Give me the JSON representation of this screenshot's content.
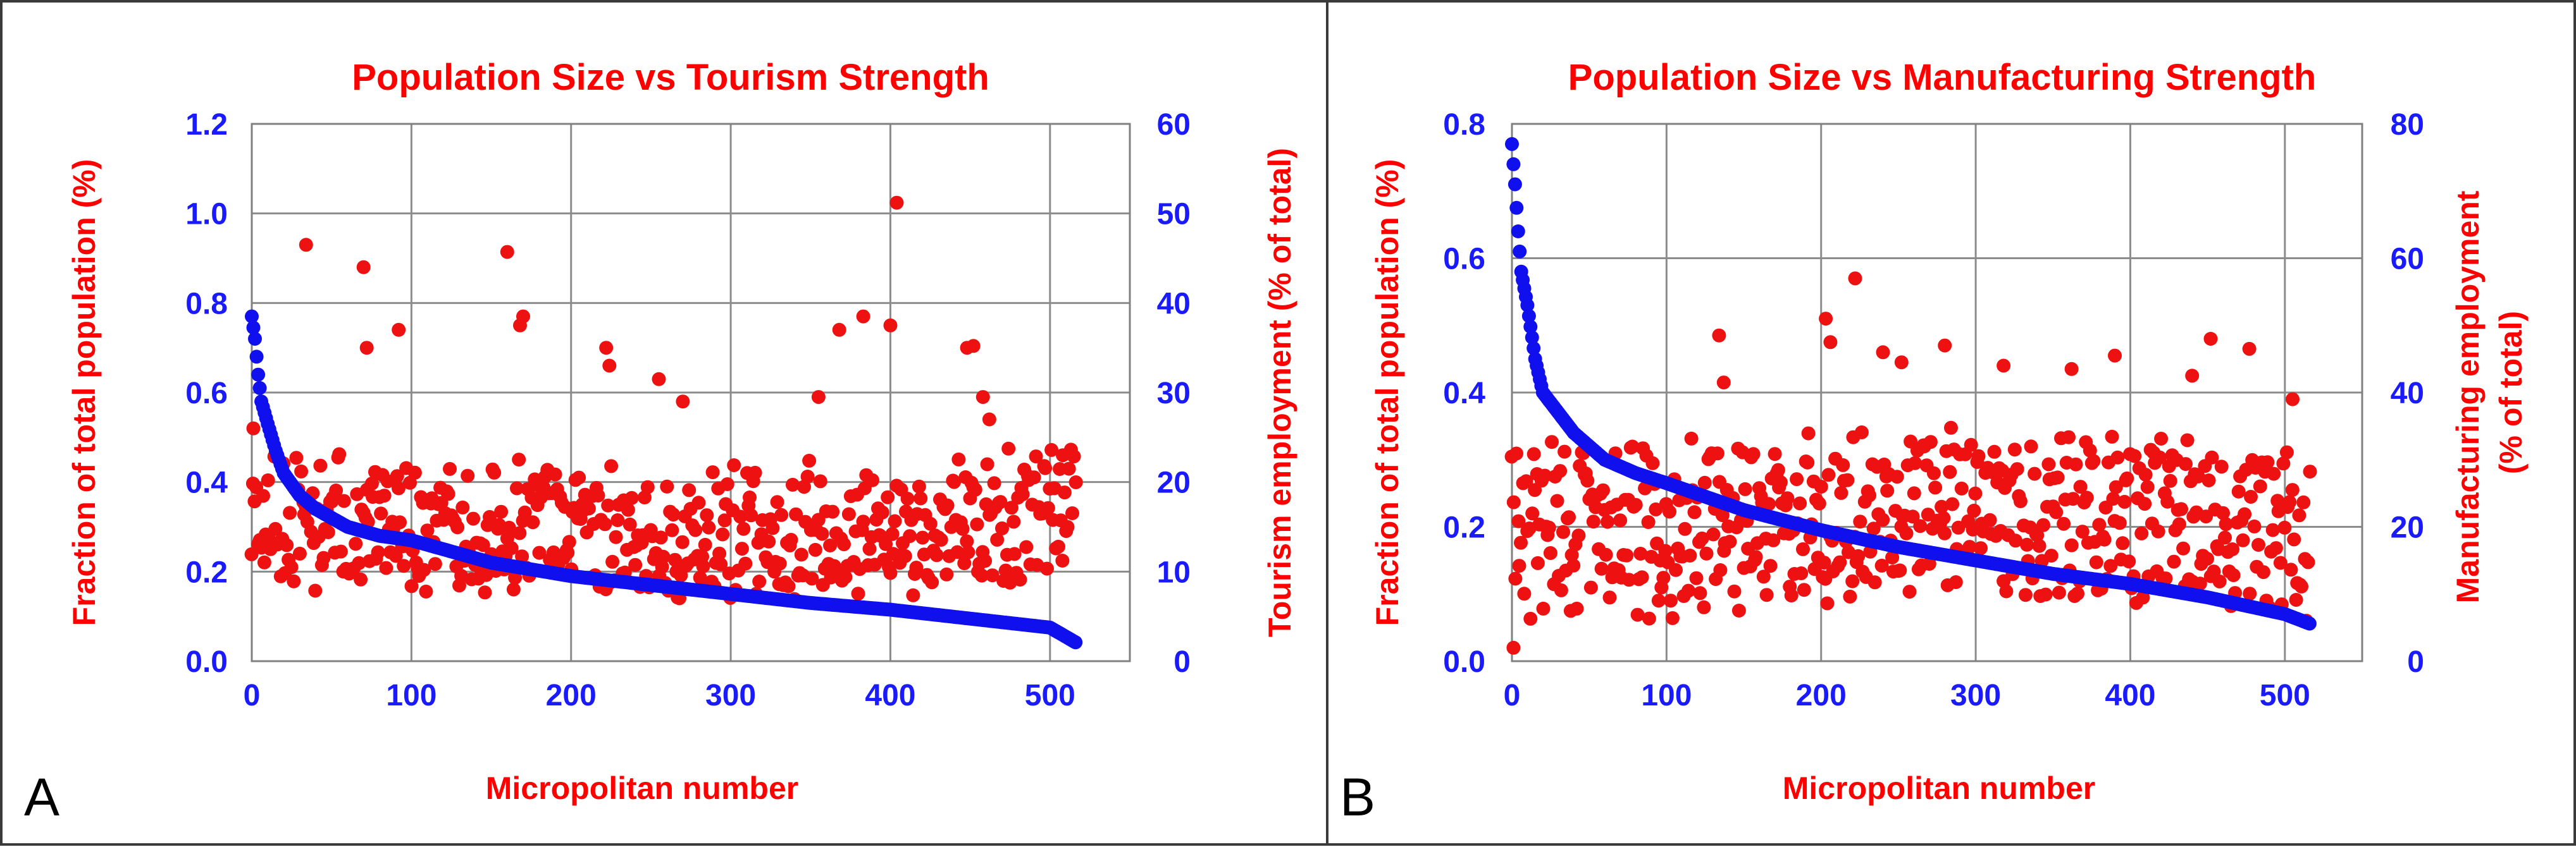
{
  "chart_data": [
    {
      "type": "scatter",
      "panel_label": "A",
      "title": "Population Size vs Tourism Strength",
      "xlabel": "Micropolitan number",
      "ylabel_left": "Fraction of total population  (%)",
      "ylabel_right": "Tourism employment (% of total)",
      "xlim": [
        0,
        550
      ],
      "ylim_left": [
        0,
        1.2
      ],
      "ylim_right": [
        0,
        60
      ],
      "x_ticks": [
        "0",
        "100",
        "200",
        "300",
        "400",
        "500"
      ],
      "y_left_ticks": [
        "0.0",
        "0.2",
        "0.4",
        "0.6",
        "0.8",
        "1.0",
        "1.2"
      ],
      "y_right_ticks": [
        "0",
        "10",
        "20",
        "30",
        "40",
        "50",
        "60"
      ],
      "grid": true,
      "colors": {
        "left_series": "#1010ee",
        "right_series": "#ee1111"
      },
      "series": [
        {
          "name": "Fraction of total population",
          "axis": "left",
          "color": "#1010ee",
          "curve": {
            "n": 517,
            "points": [
              [
                0,
                0.77
              ],
              [
                2,
                0.72
              ],
              [
                4,
                0.64
              ],
              [
                6,
                0.58
              ],
              [
                10,
                0.53
              ],
              [
                15,
                0.47
              ],
              [
                20,
                0.42
              ],
              [
                30,
                0.37
              ],
              [
                40,
                0.34
              ],
              [
                60,
                0.3
              ],
              [
                80,
                0.28
              ],
              [
                100,
                0.27
              ],
              [
                150,
                0.22
              ],
              [
                200,
                0.19
              ],
              [
                250,
                0.17
              ],
              [
                300,
                0.15
              ],
              [
                350,
                0.13
              ],
              [
                400,
                0.115
              ],
              [
                450,
                0.095
              ],
              [
                500,
                0.075
              ],
              [
                517,
                0.04
              ]
            ]
          }
        },
        {
          "name": "Tourism employment",
          "axis": "right",
          "color": "#ee1111",
          "generated": {
            "n": 517,
            "seed": 11,
            "base": [
              [
                0,
                13
              ],
              [
                50,
                12
              ],
              [
                150,
                11
              ],
              [
                250,
                10.5
              ],
              [
                350,
                11
              ],
              [
                450,
                12
              ],
              [
                517,
                13
              ]
            ],
            "spread": 4.5,
            "skew": 1.8,
            "range": [
              6,
              40
            ]
          },
          "outliers": [
            [
              1,
              26
            ],
            [
              34,
              46.5
            ],
            [
              70,
              44
            ],
            [
              72,
              35
            ],
            [
              92,
              37
            ],
            [
              160,
              45.7
            ],
            [
              168,
              37.5
            ],
            [
              170,
              38.5
            ],
            [
              222,
              35
            ],
            [
              224,
              33
            ],
            [
              255,
              31.5
            ],
            [
              270,
              29
            ],
            [
              355,
              29.5
            ],
            [
              368,
              37
            ],
            [
              383,
              38.5
            ],
            [
              400,
              37.5
            ],
            [
              404,
              51.2
            ],
            [
              448,
              35
            ],
            [
              452,
              35.2
            ],
            [
              458,
              29.5
            ],
            [
              462,
              27
            ],
            [
              508,
              23
            ]
          ]
        }
      ]
    },
    {
      "type": "scatter",
      "panel_label": "B",
      "title": "Population Size vs Manufacturing Strength",
      "xlabel": "Micropolitan number",
      "ylabel_left": "Fraction of total population (%)",
      "ylabel_right": "Manufacturing employment (% of total)",
      "xlim": [
        0,
        550
      ],
      "ylim_left": [
        0,
        0.8
      ],
      "ylim_right": [
        0,
        80
      ],
      "x_ticks": [
        "0",
        "100",
        "200",
        "300",
        "400",
        "500"
      ],
      "y_left_ticks": [
        "0.0",
        "0.2",
        "0.4",
        "0.6",
        "0.8"
      ],
      "y_right_ticks": [
        "0",
        "20",
        "40",
        "60",
        "80"
      ],
      "grid": true,
      "colors": {
        "left_series": "#1010ee",
        "right_series": "#ee1111"
      },
      "series": [
        {
          "name": "Fraction of total population",
          "axis": "left",
          "color": "#1010ee",
          "curve": {
            "n": 517,
            "points": [
              [
                0,
                0.77
              ],
              [
                2,
                0.71
              ],
              [
                4,
                0.64
              ],
              [
                6,
                0.58
              ],
              [
                10,
                0.53
              ],
              [
                15,
                0.45
              ],
              [
                20,
                0.4
              ],
              [
                30,
                0.37
              ],
              [
                40,
                0.34
              ],
              [
                60,
                0.3
              ],
              [
                80,
                0.28
              ],
              [
                100,
                0.265
              ],
              [
                150,
                0.225
              ],
              [
                200,
                0.195
              ],
              [
                250,
                0.17
              ],
              [
                300,
                0.15
              ],
              [
                350,
                0.13
              ],
              [
                400,
                0.115
              ],
              [
                450,
                0.095
              ],
              [
                500,
                0.07
              ],
              [
                517,
                0.055
              ]
            ]
          }
        },
        {
          "name": "Manufacturing employment",
          "axis": "right",
          "color": "#ee1111",
          "generated": {
            "n": 517,
            "seed": 29,
            "base": [
              [
                0,
                17
              ],
              [
                100,
                16
              ],
              [
                200,
                18
              ],
              [
                300,
                20
              ],
              [
                400,
                18
              ],
              [
                517,
                15
              ]
            ],
            "spread": 11,
            "skew": 1.0,
            "range": [
              0,
              42
            ]
          },
          "outliers": [
            [
              1,
              2
            ],
            [
              134,
              48.5
            ],
            [
              137,
              41.5
            ],
            [
              203,
              51
            ],
            [
              206,
              47.5
            ],
            [
              222,
              57
            ],
            [
              240,
              46
            ],
            [
              252,
              44.5
            ],
            [
              280,
              47
            ],
            [
              318,
              44
            ],
            [
              362,
              43.5
            ],
            [
              390,
              45.5
            ],
            [
              440,
              42.5
            ],
            [
              452,
              48
            ],
            [
              477,
              46.5
            ],
            [
              505,
              39
            ]
          ]
        }
      ]
    }
  ]
}
